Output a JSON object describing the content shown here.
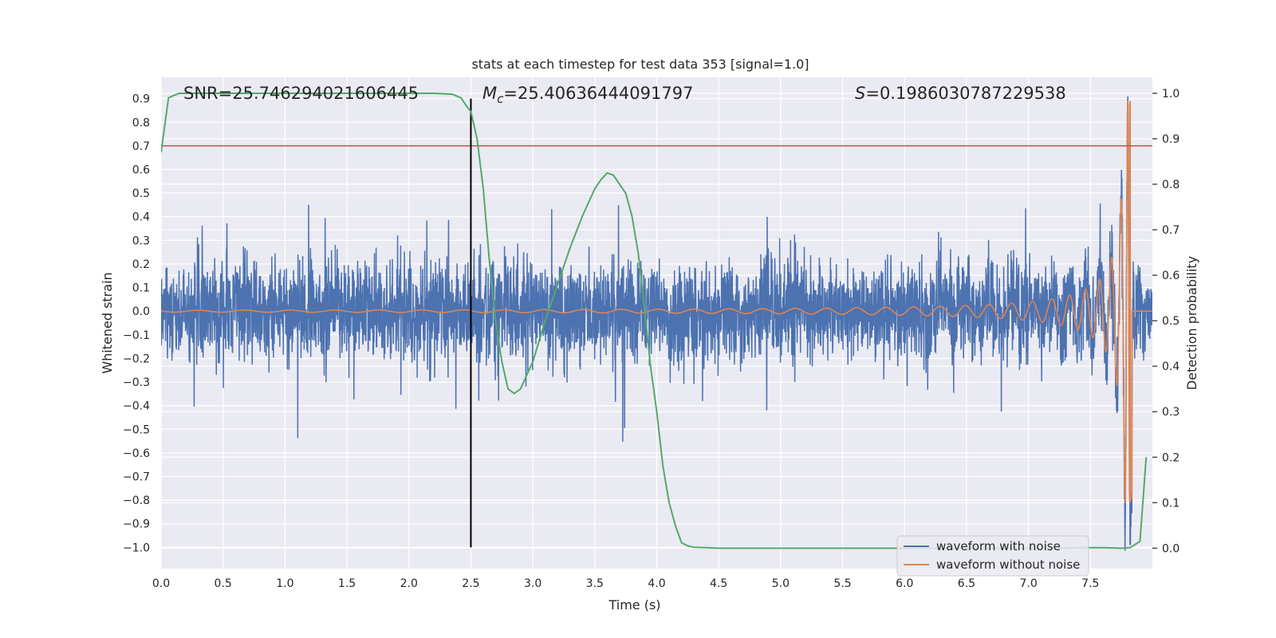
{
  "chart_data": {
    "type": "line",
    "title": "stats at each timestep for test data 353 [signal=1.0]",
    "xlabel": "Time (s)",
    "ylabel_left": "Whitened strain",
    "ylabel_right": "Detection probability",
    "xlim": [
      0,
      8
    ],
    "ylim_left": [
      -1.09,
      0.99
    ],
    "ylim_right": [
      -0.045,
      1.035
    ],
    "x_ticks": [
      "0.0",
      "0.5",
      "1.0",
      "1.5",
      "2.0",
      "2.5",
      "3.0",
      "3.5",
      "4.0",
      "4.5",
      "5.0",
      "5.5",
      "6.0",
      "6.5",
      "7.0",
      "7.5"
    ],
    "y_ticks_left": [
      "0.9",
      "0.8",
      "0.7",
      "0.6",
      "0.5",
      "0.4",
      "0.3",
      "0.2",
      "0.1",
      "0.0",
      "−0.1",
      "−0.2",
      "−0.3",
      "−0.4",
      "−0.5",
      "−0.6",
      "−0.7",
      "−0.8",
      "−0.9",
      "−1.0"
    ],
    "y_ticks_right": [
      "1.0",
      "0.9",
      "0.8",
      "0.7",
      "0.6",
      "0.5",
      "0.4",
      "0.3",
      "0.2",
      "0.1",
      "0.0"
    ],
    "annotations": {
      "snr": "SNR=25.746294021606445",
      "mc_symbol": "M",
      "mc_sub": "c",
      "mc_value": "=25.40636444091797",
      "s_symbol": "S",
      "s_value": "=0.1986030787229538"
    },
    "threshold_line": {
      "y_left": 0.7,
      "color": "#c44e52"
    },
    "vertical_marker": {
      "x": 2.5,
      "y_range_left": [
        -1.0,
        0.9
      ],
      "color": "#000000"
    },
    "series": [
      {
        "name": "waveform with noise",
        "color": "#4c72b0",
        "description": "noisy whitened strain, typical amplitude about ±0.25 with spikes to ±0.6",
        "noise_amplitude": 0.25,
        "spike_max": 0.6,
        "merger_peak_x": 7.82,
        "merger_peak_max": 0.88,
        "merger_peak_min": -0.99
      },
      {
        "name": "waveform without noise",
        "color": "#dd8452",
        "description": "chirp signal growing in amplitude and frequency toward merger",
        "start_amplitude": 0.004,
        "merger_x": 7.82,
        "merger_max": 0.89,
        "merger_min": -0.81
      },
      {
        "name": "detection probability",
        "color": "#55a868",
        "axis": "right",
        "x": [
          0.0,
          0.03,
          0.06,
          0.1,
          0.15,
          0.2,
          0.5,
          1.0,
          1.5,
          2.0,
          2.2,
          2.35,
          2.42,
          2.47,
          2.5,
          2.55,
          2.6,
          2.65,
          2.7,
          2.75,
          2.8,
          2.85,
          2.9,
          3.0,
          3.1,
          3.2,
          3.3,
          3.4,
          3.5,
          3.55,
          3.6,
          3.65,
          3.7,
          3.75,
          3.8,
          3.85,
          3.9,
          3.95,
          4.0,
          4.05,
          4.1,
          4.15,
          4.2,
          4.25,
          4.3,
          4.5,
          5.0,
          6.0,
          7.0,
          7.5,
          7.6,
          7.75,
          7.82,
          7.9,
          7.95
        ],
        "values": [
          0.87,
          0.93,
          0.99,
          0.995,
          1.0,
          1.0,
          1.0,
          1.0,
          1.0,
          1.0,
          1.0,
          0.998,
          0.99,
          0.97,
          0.96,
          0.9,
          0.79,
          0.63,
          0.5,
          0.41,
          0.35,
          0.34,
          0.35,
          0.41,
          0.5,
          0.58,
          0.66,
          0.73,
          0.79,
          0.81,
          0.825,
          0.82,
          0.8,
          0.78,
          0.73,
          0.65,
          0.53,
          0.4,
          0.3,
          0.18,
          0.1,
          0.05,
          0.012,
          0.005,
          0.002,
          0.0,
          0.0,
          0.0,
          0.0,
          0.001,
          0.001,
          0.0,
          0.001,
          0.015,
          0.2
        ]
      }
    ],
    "legend": {
      "position": "lower-right",
      "entries": [
        "waveform with noise",
        "waveform without noise"
      ]
    },
    "colors": {
      "background": "#eaeaf2",
      "grid": "#ffffff",
      "text": "#262626"
    }
  }
}
